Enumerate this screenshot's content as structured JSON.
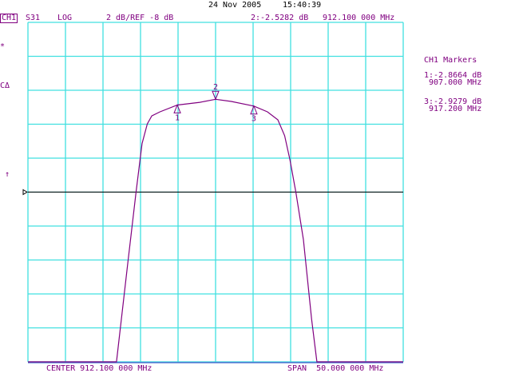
{
  "header": {
    "date": "24 Nov 2005",
    "time": "15:40:39",
    "channel": "CH1",
    "parameter": "S31",
    "format": "LOG",
    "scale_ref": "2 dB/REF -8 dB",
    "active_marker": "2:-2.5282 dB",
    "active_marker_freq": "912.100 000 MHz"
  },
  "left_annotations": {
    "star": "*",
    "cdelta": "CΔ",
    "arrow": "↑"
  },
  "marker_panel": {
    "title": "CH1 Markers",
    "m1_value": "1:-2.8664 dB",
    "m1_freq": "907.000 MHz",
    "m3_value": "3:-2.9279 dB",
    "m3_freq": "917.200 MHz"
  },
  "footer": {
    "center": "CENTER 912.100 000 MHz",
    "span": "SPAN  50.000 000 MHz"
  },
  "colors": {
    "grid": "#40e0e0",
    "trace": "#800080",
    "reference": "#000000"
  },
  "chart_data": {
    "type": "line",
    "x_unit": "MHz",
    "y_unit": "dB",
    "xlim": [
      887.1,
      937.1
    ],
    "ylim": [
      -18,
      2
    ],
    "reference_level": -8,
    "divisions": [
      10,
      10
    ],
    "grid": true,
    "x": [
      887.1,
      898.9,
      900.4,
      901.5,
      902.3,
      903.0,
      903.6,
      904.7,
      907.0,
      910.0,
      912.1,
      914.2,
      917.2,
      919.0,
      920.4,
      921.3,
      922.0,
      922.8,
      923.8,
      924.9,
      925.6,
      937.1
    ],
    "y": [
      -18,
      -18,
      -12.2,
      -8.0,
      -5.15,
      -3.98,
      -3.51,
      -3.27,
      -2.87,
      -2.71,
      -2.53,
      -2.66,
      -2.93,
      -3.27,
      -3.74,
      -4.68,
      -6.09,
      -8.02,
      -10.8,
      -15.5,
      -18,
      -18
    ],
    "markers": [
      {
        "label": "1",
        "x": 907.0,
        "y": -2.8664,
        "dir": "up"
      },
      {
        "label": "2",
        "x": 912.1,
        "y": -2.5282,
        "dir": "down"
      },
      {
        "label": "3",
        "x": 917.2,
        "y": -2.9279,
        "dir": "up"
      }
    ]
  }
}
